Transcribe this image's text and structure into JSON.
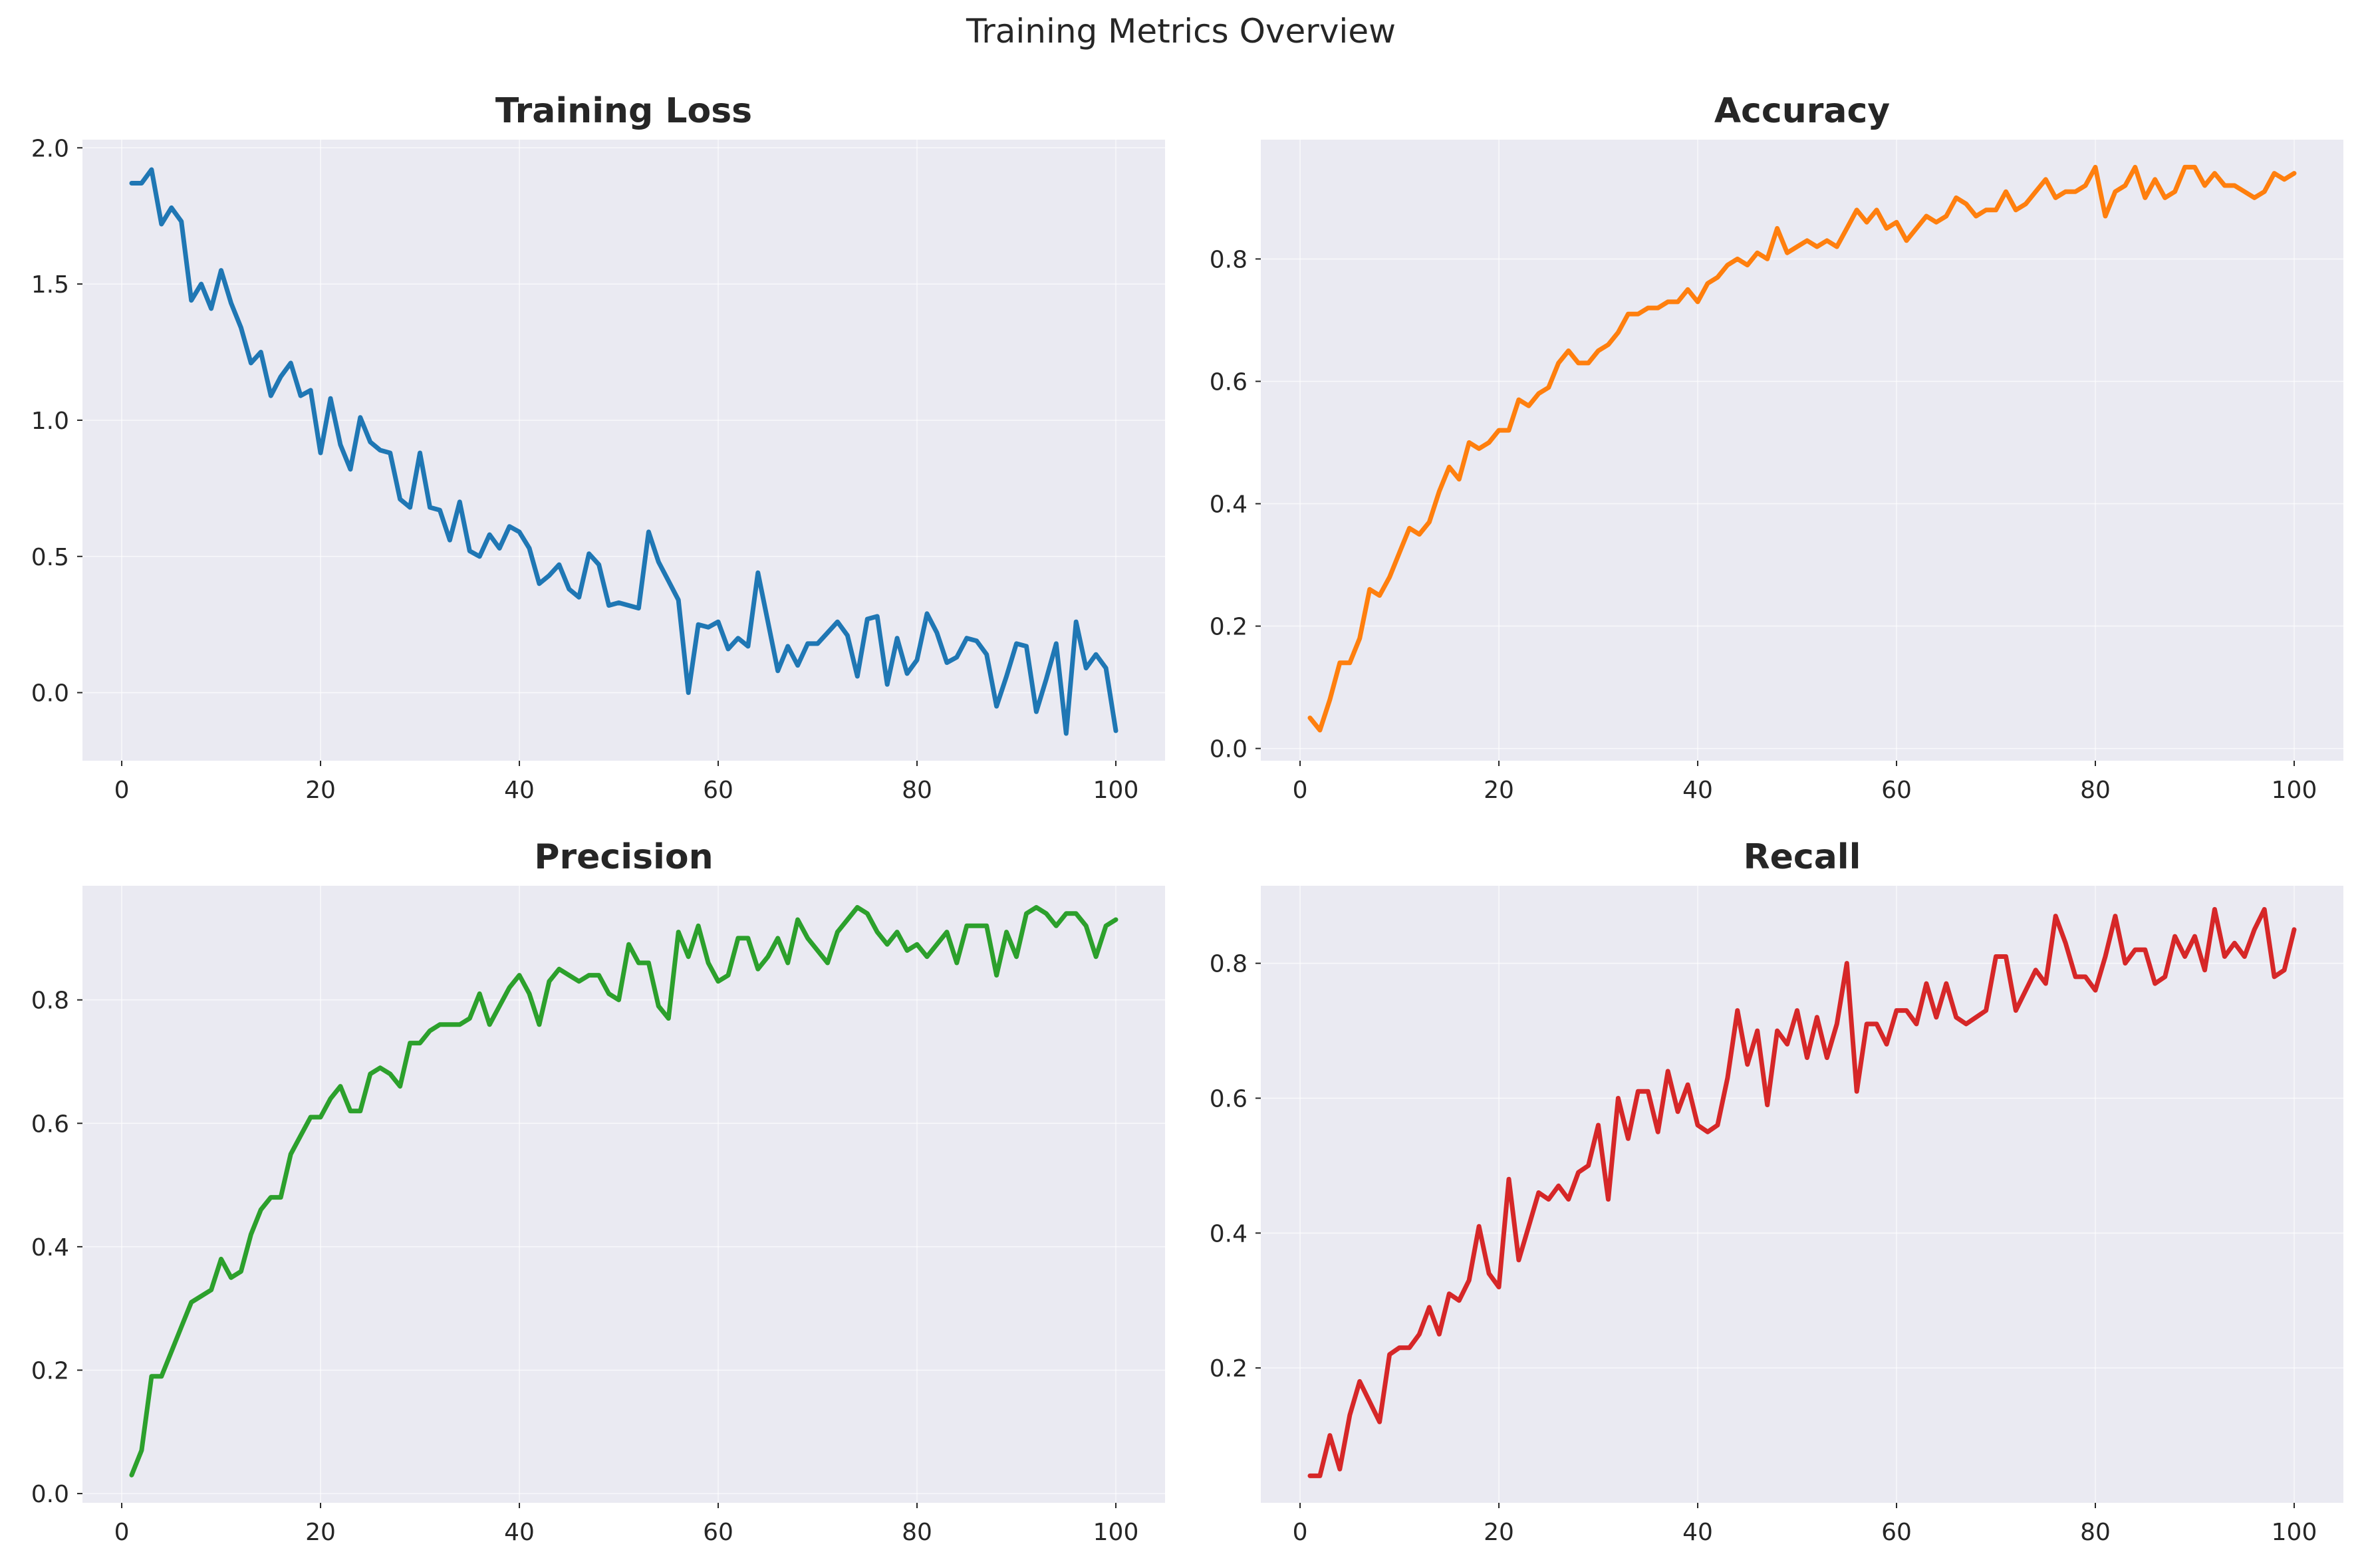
{
  "suptitle": "Training Metrics Overview",
  "chart_data": [
    {
      "type": "line",
      "title": "Training Loss",
      "color": "#1f77b4",
      "xlim": [
        -3.95,
        104.95
      ],
      "ylim": [
        -0.25,
        2.03
      ],
      "xticks": [
        0,
        20,
        40,
        60,
        80,
        100
      ],
      "yticks": [
        0.0,
        0.5,
        1.0,
        1.5,
        2.0
      ],
      "ytick_labels": [
        "0.0",
        "0.5",
        "1.0",
        "1.5",
        "2.0"
      ],
      "grid": true,
      "x_start": 1,
      "values": [
        1.87,
        1.87,
        1.92,
        1.72,
        1.78,
        1.73,
        1.44,
        1.5,
        1.41,
        1.55,
        1.43,
        1.34,
        1.21,
        1.25,
        1.09,
        1.16,
        1.21,
        1.09,
        1.11,
        0.88,
        1.08,
        0.91,
        0.82,
        1.01,
        0.92,
        0.89,
        0.88,
        0.71,
        0.68,
        0.88,
        0.68,
        0.67,
        0.56,
        0.7,
        0.52,
        0.5,
        0.58,
        0.53,
        0.61,
        0.59,
        0.53,
        0.4,
        0.43,
        0.47,
        0.38,
        0.35,
        0.51,
        0.47,
        0.32,
        0.33,
        0.32,
        0.31,
        0.59,
        0.48,
        0.41,
        0.34,
        0.0,
        0.25,
        0.24,
        0.26,
        0.16,
        0.2,
        0.17,
        0.44,
        0.26,
        0.08,
        0.17,
        0.1,
        0.18,
        0.18,
        0.22,
        0.26,
        0.21,
        0.06,
        0.27,
        0.28,
        0.03,
        0.2,
        0.07,
        0.12,
        0.29,
        0.22,
        0.11,
        0.13,
        0.2,
        0.19,
        0.14,
        -0.05,
        0.06,
        0.18,
        0.17,
        -0.07,
        0.05,
        0.18,
        -0.15,
        0.26,
        0.09,
        0.14,
        0.09,
        -0.14
      ]
    },
    {
      "type": "line",
      "title": "Accuracy",
      "color": "#ff7f0e",
      "xlim": [
        -3.95,
        104.95
      ],
      "ylim": [
        -0.02,
        0.995
      ],
      "xticks": [
        0,
        20,
        40,
        60,
        80,
        100
      ],
      "yticks": [
        0.0,
        0.2,
        0.4,
        0.6,
        0.8
      ],
      "ytick_labels": [
        "0.0",
        "0.2",
        "0.4",
        "0.6",
        "0.8"
      ],
      "grid": true,
      "x_start": 1,
      "values": [
        0.05,
        0.03,
        0.08,
        0.14,
        0.14,
        0.18,
        0.26,
        0.25,
        0.28,
        0.32,
        0.36,
        0.35,
        0.37,
        0.42,
        0.46,
        0.44,
        0.5,
        0.49,
        0.5,
        0.52,
        0.52,
        0.57,
        0.56,
        0.58,
        0.59,
        0.63,
        0.65,
        0.63,
        0.63,
        0.65,
        0.66,
        0.68,
        0.71,
        0.71,
        0.72,
        0.72,
        0.73,
        0.73,
        0.75,
        0.73,
        0.76,
        0.77,
        0.79,
        0.8,
        0.79,
        0.81,
        0.8,
        0.85,
        0.81,
        0.82,
        0.83,
        0.82,
        0.83,
        0.82,
        0.85,
        0.88,
        0.86,
        0.88,
        0.85,
        0.86,
        0.83,
        0.85,
        0.87,
        0.86,
        0.87,
        0.9,
        0.89,
        0.87,
        0.88,
        0.88,
        0.91,
        0.88,
        0.89,
        0.91,
        0.93,
        0.9,
        0.91,
        0.91,
        0.92,
        0.95,
        0.87,
        0.91,
        0.92,
        0.95,
        0.9,
        0.93,
        0.9,
        0.91,
        0.95,
        0.95,
        0.92,
        0.94,
        0.92,
        0.92,
        0.91,
        0.9,
        0.91,
        0.94,
        0.93,
        0.94
      ]
    },
    {
      "type": "line",
      "title": "Precision",
      "color": "#2ca02c",
      "xlim": [
        -3.95,
        104.95
      ],
      "ylim": [
        -0.015,
        0.985
      ],
      "xticks": [
        0,
        20,
        40,
        60,
        80,
        100
      ],
      "yticks": [
        0.0,
        0.2,
        0.4,
        0.6,
        0.8
      ],
      "ytick_labels": [
        "0.0",
        "0.2",
        "0.4",
        "0.6",
        "0.8"
      ],
      "grid": true,
      "x_start": 1,
      "values": [
        0.03,
        0.07,
        0.19,
        0.19,
        0.23,
        0.27,
        0.31,
        0.32,
        0.33,
        0.38,
        0.35,
        0.36,
        0.42,
        0.46,
        0.48,
        0.48,
        0.55,
        0.58,
        0.61,
        0.61,
        0.64,
        0.66,
        0.62,
        0.62,
        0.68,
        0.69,
        0.68,
        0.66,
        0.73,
        0.73,
        0.75,
        0.76,
        0.76,
        0.76,
        0.77,
        0.81,
        0.76,
        0.79,
        0.82,
        0.84,
        0.81,
        0.76,
        0.83,
        0.85,
        0.84,
        0.83,
        0.84,
        0.84,
        0.81,
        0.8,
        0.89,
        0.86,
        0.86,
        0.79,
        0.77,
        0.91,
        0.87,
        0.92,
        0.86,
        0.83,
        0.84,
        0.9,
        0.9,
        0.85,
        0.87,
        0.9,
        0.86,
        0.93,
        0.9,
        0.88,
        0.86,
        0.91,
        0.93,
        0.95,
        0.94,
        0.91,
        0.89,
        0.91,
        0.88,
        0.89,
        0.87,
        0.89,
        0.91,
        0.86,
        0.92,
        0.92,
        0.92,
        0.84,
        0.91,
        0.87,
        0.94,
        0.95,
        0.94,
        0.92,
        0.94,
        0.94,
        0.92,
        0.87,
        0.92,
        0.93
      ]
    },
    {
      "type": "line",
      "title": "Recall",
      "color": "#d62728",
      "xlim": [
        -3.95,
        104.95
      ],
      "ylim": [
        0.0,
        0.915
      ],
      "xticks": [
        0,
        20,
        40,
        60,
        80,
        100
      ],
      "yticks": [
        0.2,
        0.4,
        0.6,
        0.8
      ],
      "ytick_labels": [
        "0.2",
        "0.4",
        "0.6",
        "0.8"
      ],
      "grid": true,
      "x_start": 1,
      "values": [
        0.04,
        0.04,
        0.1,
        0.05,
        0.13,
        0.18,
        0.15,
        0.12,
        0.22,
        0.23,
        0.23,
        0.25,
        0.29,
        0.25,
        0.31,
        0.3,
        0.33,
        0.41,
        0.34,
        0.32,
        0.48,
        0.36,
        0.41,
        0.46,
        0.45,
        0.47,
        0.45,
        0.49,
        0.5,
        0.56,
        0.45,
        0.6,
        0.54,
        0.61,
        0.61,
        0.55,
        0.64,
        0.58,
        0.62,
        0.56,
        0.55,
        0.56,
        0.63,
        0.73,
        0.65,
        0.7,
        0.59,
        0.7,
        0.68,
        0.73,
        0.66,
        0.72,
        0.66,
        0.71,
        0.8,
        0.61,
        0.71,
        0.71,
        0.68,
        0.73,
        0.73,
        0.71,
        0.77,
        0.72,
        0.77,
        0.72,
        0.71,
        0.72,
        0.73,
        0.81,
        0.81,
        0.73,
        0.76,
        0.79,
        0.77,
        0.87,
        0.83,
        0.78,
        0.78,
        0.76,
        0.81,
        0.87,
        0.8,
        0.82,
        0.82,
        0.77,
        0.78,
        0.84,
        0.81,
        0.84,
        0.79,
        0.88,
        0.81,
        0.83,
        0.81,
        0.85,
        0.88,
        0.78,
        0.79,
        0.85
      ]
    }
  ]
}
